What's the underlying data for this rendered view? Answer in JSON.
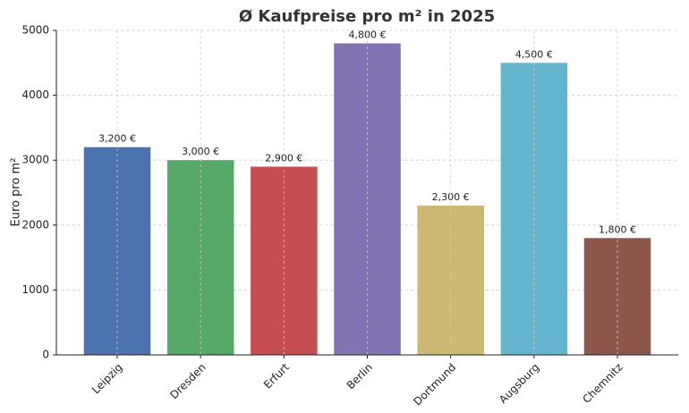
{
  "chart_data": {
    "type": "bar",
    "title": "Ø Kaufpreise pro m² in 2025",
    "ylabel": "Euro pro m²",
    "categories": [
      "Leipzig",
      "Dresden",
      "Erfurt",
      "Berlin",
      "Dortmund",
      "Augsburg",
      "Chemnitz"
    ],
    "values": [
      3200,
      3000,
      2900,
      4800,
      2300,
      4500,
      1800
    ],
    "value_labels": [
      "3,200 €",
      "3,000 €",
      "2,900 €",
      "4,800 €",
      "2,300 €",
      "4,500 €",
      "1,800 €"
    ],
    "colors": [
      "#4c72b0",
      "#55a868",
      "#c44e52",
      "#8172b2",
      "#ccb974",
      "#64b5cd",
      "#8c564b"
    ],
    "ylim": [
      0,
      5000
    ],
    "yticks": [
      0,
      1000,
      2000,
      3000,
      4000,
      5000
    ],
    "grid": true
  }
}
